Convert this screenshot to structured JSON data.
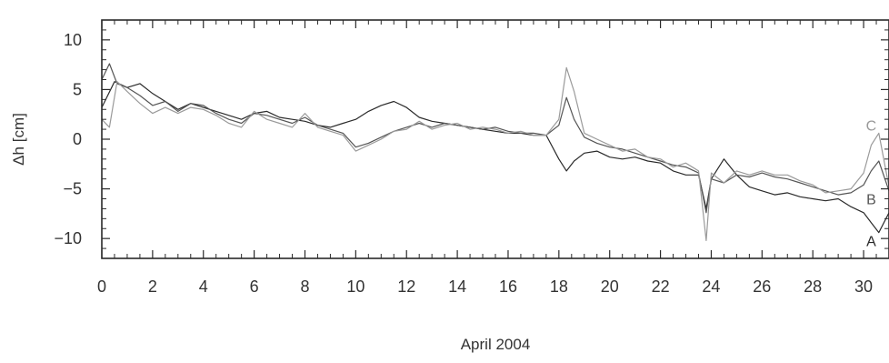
{
  "chart_data": {
    "type": "line",
    "title": "",
    "xlabel": "April 2004",
    "ylabel": "Δh [cm]",
    "xlim": [
      0,
      31
    ],
    "ylim": [
      -12,
      12
    ],
    "x_ticks": [
      0,
      2,
      4,
      6,
      8,
      10,
      12,
      14,
      16,
      18,
      20,
      22,
      24,
      26,
      28,
      30
    ],
    "y_ticks": [
      10,
      5,
      0,
      -5,
      -10
    ],
    "y_tick_labels": [
      "10",
      "5",
      "0",
      "−5",
      "−10"
    ],
    "grid": false,
    "series": [
      {
        "name": "A",
        "color": "#2a2a2a",
        "points": [
          [
            0,
            3.2
          ],
          [
            0.5,
            5.8
          ],
          [
            1,
            5.2
          ],
          [
            1.5,
            5.6
          ],
          [
            2,
            4.6
          ],
          [
            2.5,
            3.8
          ],
          [
            3,
            3.0
          ],
          [
            3.5,
            3.6
          ],
          [
            4,
            3.2
          ],
          [
            4.5,
            2.8
          ],
          [
            5,
            2.4
          ],
          [
            5.5,
            2.0
          ],
          [
            6,
            2.6
          ],
          [
            6.5,
            2.8
          ],
          [
            7,
            2.2
          ],
          [
            7.5,
            2.0
          ],
          [
            8,
            1.8
          ],
          [
            8.5,
            1.4
          ],
          [
            9,
            1.2
          ],
          [
            9.5,
            1.6
          ],
          [
            10,
            2.0
          ],
          [
            10.5,
            2.8
          ],
          [
            11,
            3.4
          ],
          [
            11.5,
            3.8
          ],
          [
            12,
            3.2
          ],
          [
            12.5,
            2.2
          ],
          [
            13,
            1.8
          ],
          [
            13.5,
            1.6
          ],
          [
            14,
            1.4
          ],
          [
            14.5,
            1.2
          ],
          [
            15,
            1.0
          ],
          [
            15.5,
            0.8
          ],
          [
            16,
            0.6
          ],
          [
            16.5,
            0.6
          ],
          [
            17,
            0.4
          ],
          [
            17.5,
            0.4
          ],
          [
            18,
            -2.0
          ],
          [
            18.3,
            -3.2
          ],
          [
            18.6,
            -2.2
          ],
          [
            19,
            -1.4
          ],
          [
            19.5,
            -1.2
          ],
          [
            20,
            -1.8
          ],
          [
            20.5,
            -2.0
          ],
          [
            21,
            -1.8
          ],
          [
            21.5,
            -2.2
          ],
          [
            22,
            -2.4
          ],
          [
            22.5,
            -3.2
          ],
          [
            23,
            -3.6
          ],
          [
            23.5,
            -3.6
          ],
          [
            23.8,
            -7.0
          ],
          [
            24,
            -4.0
          ],
          [
            24.5,
            -2.0
          ],
          [
            25,
            -3.6
          ],
          [
            25.5,
            -4.8
          ],
          [
            26,
            -5.2
          ],
          [
            26.5,
            -5.6
          ],
          [
            27,
            -5.4
          ],
          [
            27.5,
            -5.8
          ],
          [
            28,
            -6.0
          ],
          [
            28.5,
            -6.2
          ],
          [
            29,
            -6.0
          ],
          [
            29.5,
            -6.8
          ],
          [
            30,
            -7.4
          ],
          [
            30.3,
            -8.4
          ],
          [
            30.6,
            -9.4
          ],
          [
            31,
            -7.4
          ]
        ]
      },
      {
        "name": "B",
        "color": "#555555",
        "points": [
          [
            0,
            6.0
          ],
          [
            0.3,
            7.6
          ],
          [
            0.6,
            5.6
          ],
          [
            1,
            5.2
          ],
          [
            1.5,
            4.4
          ],
          [
            2,
            3.4
          ],
          [
            2.5,
            3.8
          ],
          [
            3,
            2.8
          ],
          [
            3.5,
            3.6
          ],
          [
            4,
            3.4
          ],
          [
            4.5,
            2.6
          ],
          [
            5,
            2.0
          ],
          [
            5.5,
            1.6
          ],
          [
            6,
            2.6
          ],
          [
            6.5,
            2.4
          ],
          [
            7,
            2.0
          ],
          [
            7.5,
            1.6
          ],
          [
            8,
            2.2
          ],
          [
            8.5,
            1.4
          ],
          [
            9,
            1.0
          ],
          [
            9.5,
            0.6
          ],
          [
            10,
            -0.8
          ],
          [
            10.5,
            -0.4
          ],
          [
            11,
            0.2
          ],
          [
            11.5,
            0.8
          ],
          [
            12,
            1.2
          ],
          [
            12.5,
            1.6
          ],
          [
            13,
            1.2
          ],
          [
            13.5,
            1.6
          ],
          [
            14,
            1.4
          ],
          [
            14.5,
            1.2
          ],
          [
            15,
            1.0
          ],
          [
            15.5,
            1.2
          ],
          [
            16,
            0.8
          ],
          [
            16.5,
            0.6
          ],
          [
            17,
            0.6
          ],
          [
            17.5,
            0.4
          ],
          [
            18,
            1.4
          ],
          [
            18.3,
            4.2
          ],
          [
            18.6,
            2.0
          ],
          [
            19,
            0.2
          ],
          [
            19.5,
            -0.4
          ],
          [
            20,
            -0.8
          ],
          [
            20.5,
            -1.0
          ],
          [
            21,
            -1.4
          ],
          [
            21.5,
            -1.8
          ],
          [
            22,
            -2.2
          ],
          [
            22.5,
            -2.6
          ],
          [
            23,
            -2.8
          ],
          [
            23.5,
            -3.4
          ],
          [
            23.8,
            -7.4
          ],
          [
            24,
            -4.0
          ],
          [
            24.5,
            -4.4
          ],
          [
            25,
            -3.6
          ],
          [
            25.5,
            -3.8
          ],
          [
            26,
            -3.4
          ],
          [
            26.5,
            -3.8
          ],
          [
            27,
            -4.0
          ],
          [
            27.5,
            -4.4
          ],
          [
            28,
            -4.8
          ],
          [
            28.5,
            -5.2
          ],
          [
            29,
            -5.6
          ],
          [
            29.5,
            -5.4
          ],
          [
            30,
            -4.6
          ],
          [
            30.3,
            -3.2
          ],
          [
            30.6,
            -2.2
          ],
          [
            31,
            -5.2
          ]
        ]
      },
      {
        "name": "C",
        "color": "#9a9a9a",
        "points": [
          [
            0,
            2.0
          ],
          [
            0.3,
            1.2
          ],
          [
            0.6,
            5.8
          ],
          [
            1,
            4.8
          ],
          [
            1.5,
            3.6
          ],
          [
            2,
            2.6
          ],
          [
            2.5,
            3.2
          ],
          [
            3,
            2.6
          ],
          [
            3.5,
            3.2
          ],
          [
            4,
            3.0
          ],
          [
            4.5,
            2.4
          ],
          [
            5,
            1.6
          ],
          [
            5.5,
            1.2
          ],
          [
            6,
            2.8
          ],
          [
            6.5,
            2.0
          ],
          [
            7,
            1.6
          ],
          [
            7.5,
            1.2
          ],
          [
            8,
            2.6
          ],
          [
            8.5,
            1.2
          ],
          [
            9,
            0.8
          ],
          [
            9.5,
            0.4
          ],
          [
            10,
            -1.2
          ],
          [
            10.5,
            -0.6
          ],
          [
            11,
            0.0
          ],
          [
            11.5,
            0.8
          ],
          [
            12,
            1.0
          ],
          [
            12.5,
            1.8
          ],
          [
            13,
            1.0
          ],
          [
            13.5,
            1.4
          ],
          [
            14,
            1.6
          ],
          [
            14.5,
            1.0
          ],
          [
            15,
            1.2
          ],
          [
            15.5,
            1.0
          ],
          [
            16,
            0.6
          ],
          [
            16.5,
            0.8
          ],
          [
            17,
            0.4
          ],
          [
            17.5,
            0.4
          ],
          [
            18,
            2.0
          ],
          [
            18.3,
            7.2
          ],
          [
            18.6,
            4.8
          ],
          [
            19,
            0.6
          ],
          [
            19.5,
            0.0
          ],
          [
            20,
            -0.6
          ],
          [
            20.5,
            -1.2
          ],
          [
            21,
            -1.0
          ],
          [
            21.5,
            -1.8
          ],
          [
            22,
            -2.0
          ],
          [
            22.5,
            -2.8
          ],
          [
            23,
            -2.4
          ],
          [
            23.5,
            -3.2
          ],
          [
            23.8,
            -10.2
          ],
          [
            24,
            -3.4
          ],
          [
            24.5,
            -4.4
          ],
          [
            25,
            -3.2
          ],
          [
            25.5,
            -3.6
          ],
          [
            26,
            -3.2
          ],
          [
            26.5,
            -3.6
          ],
          [
            27,
            -3.6
          ],
          [
            27.5,
            -4.2
          ],
          [
            28,
            -4.6
          ],
          [
            28.5,
            -5.4
          ],
          [
            29,
            -5.2
          ],
          [
            29.5,
            -5.0
          ],
          [
            30,
            -3.4
          ],
          [
            30.3,
            -0.6
          ],
          [
            30.6,
            0.6
          ],
          [
            31,
            -4.8
          ]
        ]
      }
    ],
    "series_label_positions": {
      "A": [
        30.3,
        -10.2
      ],
      "B": [
        30.3,
        -6.0
      ],
      "C": [
        30.3,
        1.4
      ]
    }
  }
}
